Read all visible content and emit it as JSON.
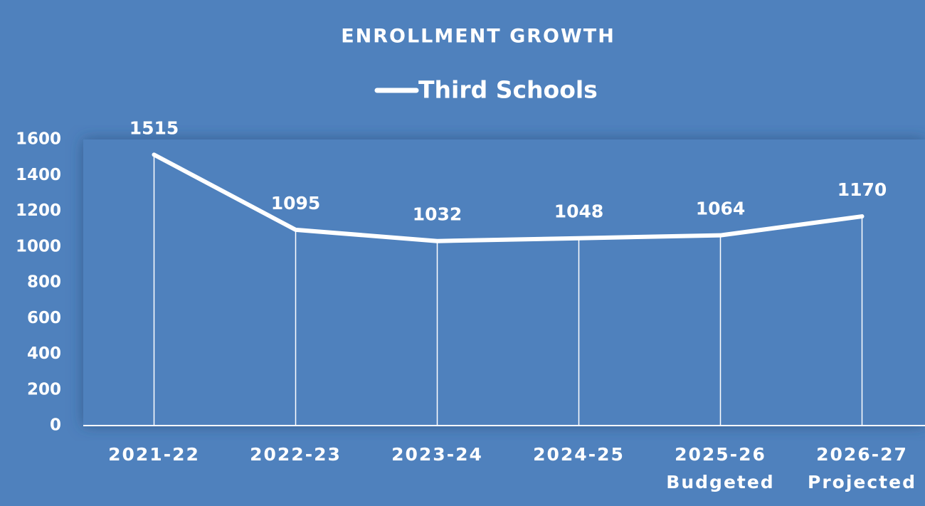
{
  "chart_data": {
    "type": "line",
    "title": "ENROLLMENT GROWTH",
    "categories": [
      "2021-22",
      "2022-23",
      "2023-24",
      "2024-25",
      "2025-26\nBudgeted",
      "2026-27\nProjected"
    ],
    "series": [
      {
        "name": "Third Schools",
        "color": "#ffffff",
        "values": [
          1515,
          1095,
          1032,
          1048,
          1064,
          1170
        ]
      }
    ],
    "ylim": [
      0,
      1600
    ],
    "yticks": [
      0,
      200,
      400,
      600,
      800,
      1000,
      1200,
      1400,
      1600
    ],
    "drop_lines": true,
    "data_labels": true,
    "legend": "top"
  }
}
